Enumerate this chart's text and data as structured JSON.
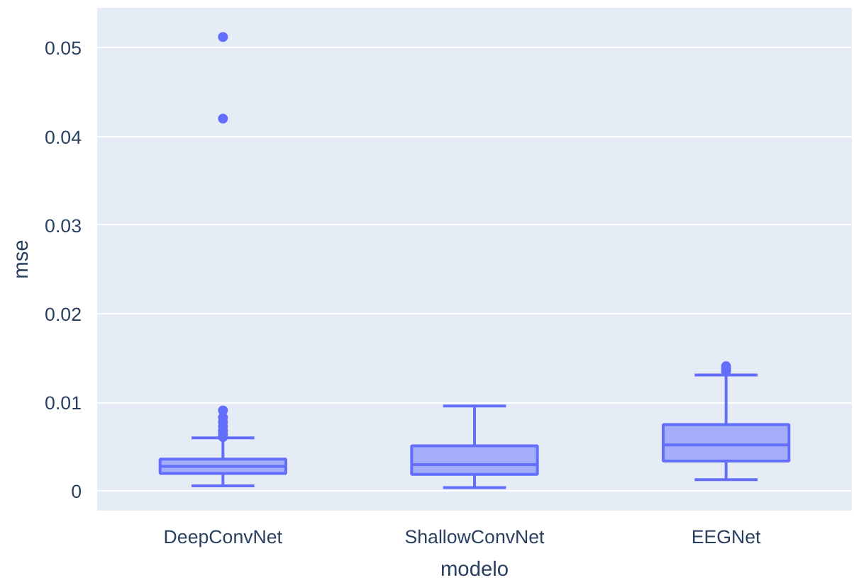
{
  "chart_data": {
    "type": "box",
    "xlabel": "modelo",
    "ylabel": "mse",
    "categories": [
      "DeepConvNet",
      "ShallowConvNet",
      "EEGNet"
    ],
    "series": [
      {
        "color": "#636efa",
        "boxes": [
          {
            "low": 0.0006,
            "q1": 0.002,
            "median": 0.0028,
            "q3": 0.0036,
            "high": 0.006,
            "outliers": [
              0.0061,
              0.0064,
              0.0068,
              0.0073,
              0.0078,
              0.0083,
              0.0091,
              0.042,
              0.0512
            ]
          },
          {
            "low": 0.0004,
            "q1": 0.0019,
            "median": 0.003,
            "q3": 0.0051,
            "high": 0.0096
          },
          {
            "low": 0.0013,
            "q1": 0.0034,
            "median": 0.0052,
            "q3": 0.0075,
            "high": 0.0131,
            "outliers": [
              0.0135,
              0.0138,
              0.0141
            ]
          }
        ]
      }
    ],
    "ylim": [
      -0.0022,
      0.0545
    ],
    "yticks": [
      0,
      0.01,
      0.02,
      0.03,
      0.04,
      0.05
    ],
    "grid": "y",
    "marker": "circle"
  }
}
